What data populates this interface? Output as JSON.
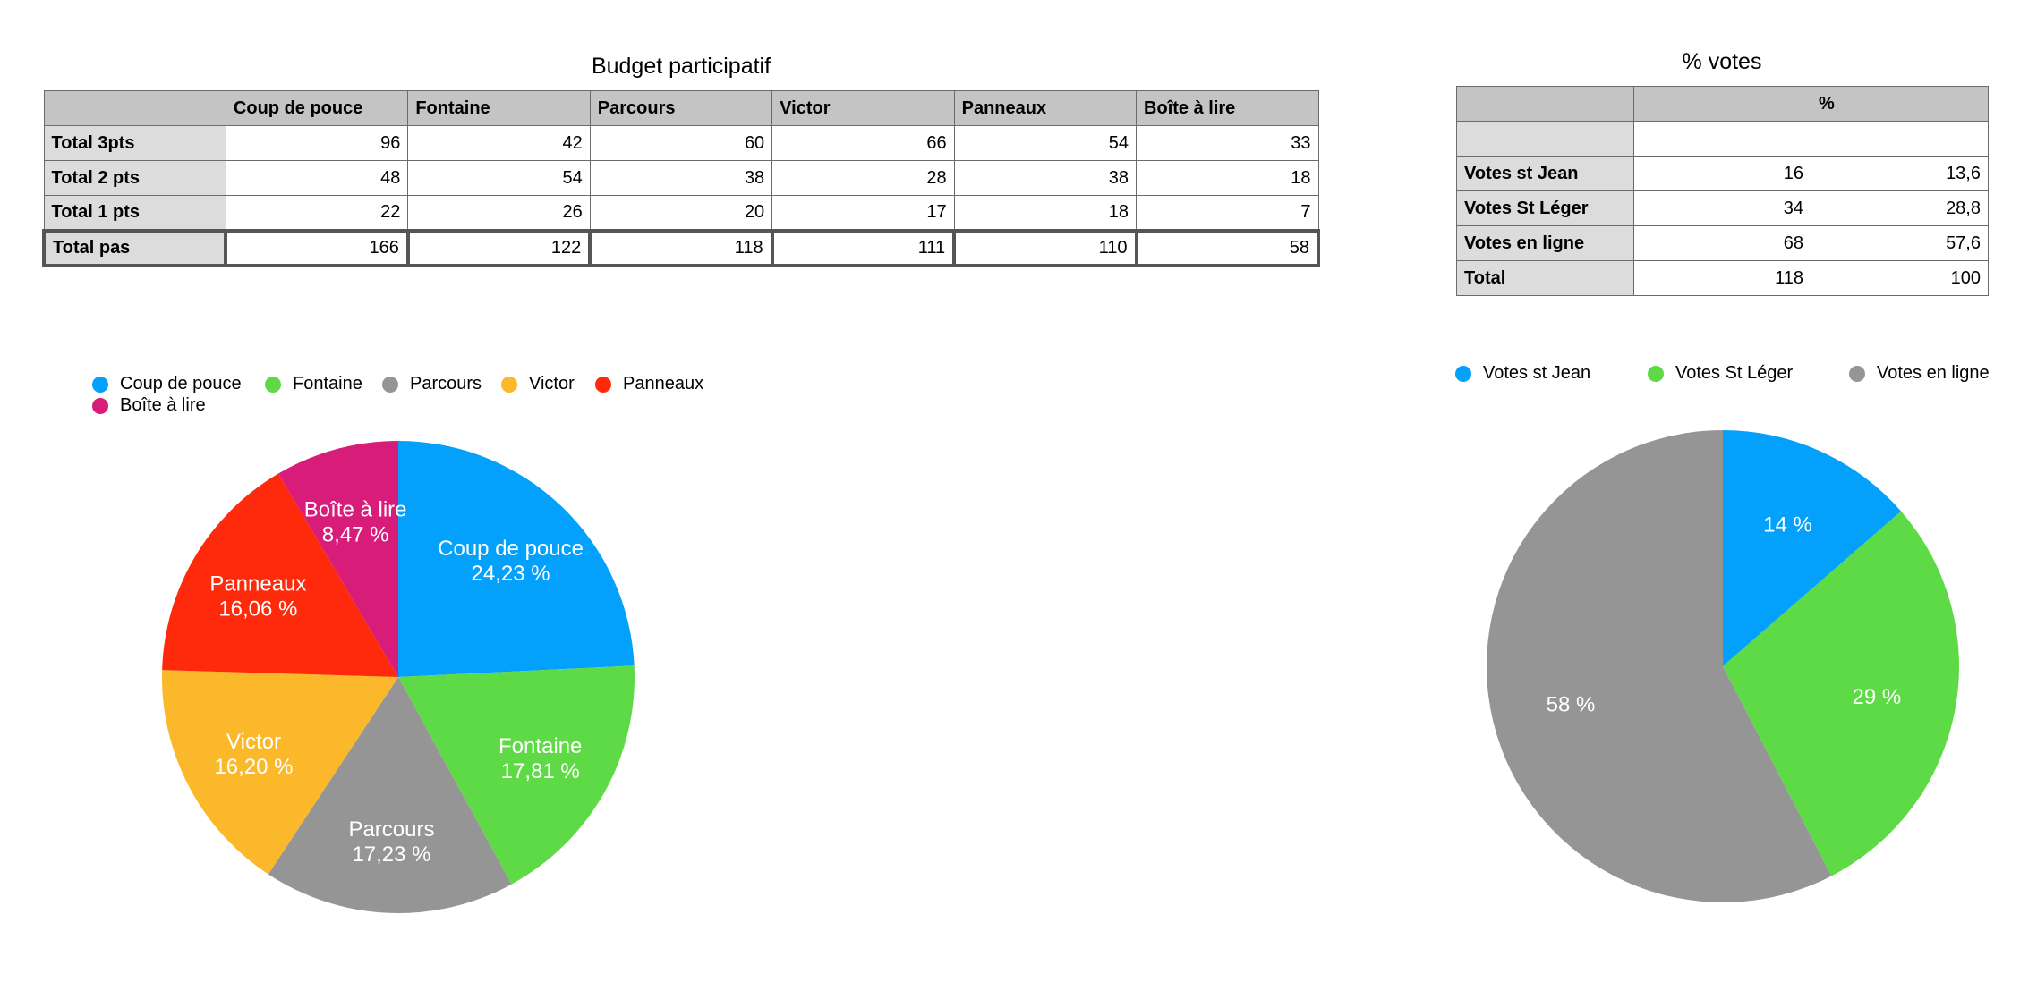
{
  "budget": {
    "title": "Budget participatif",
    "columns": [
      "",
      "Coup de pouce",
      "Fontaine",
      "Parcours",
      "Victor",
      "Panneaux",
      "Boîte à lire"
    ],
    "rows": [
      {
        "label": "Total 3pts",
        "values": [
          "96",
          "42",
          "60",
          "66",
          "54",
          "33"
        ]
      },
      {
        "label": "Total 2 pts",
        "values": [
          "48",
          "54",
          "38",
          "28",
          "38",
          "18"
        ]
      },
      {
        "label": "Total 1 pts",
        "values": [
          "22",
          "26",
          "20",
          "17",
          "18",
          "7"
        ]
      },
      {
        "label": "Total pas",
        "values": [
          "166",
          "122",
          "118",
          "111",
          "110",
          "58"
        ]
      }
    ]
  },
  "votes": {
    "title": "% votes",
    "columns": [
      "",
      "",
      "%"
    ],
    "rows": [
      {
        "label": "",
        "values": [
          "",
          ""
        ]
      },
      {
        "label": "Votes st Jean",
        "values": [
          "16",
          "13,6"
        ]
      },
      {
        "label": "Votes St Léger",
        "values": [
          "34",
          "28,8"
        ]
      },
      {
        "label": "Votes en ligne",
        "values": [
          "68",
          "57,6"
        ]
      },
      {
        "label": "Total",
        "values": [
          "118",
          "100"
        ]
      }
    ]
  },
  "chart_data": [
    {
      "type": "pie",
      "categories": [
        "Coup de pouce",
        "Fontaine",
        "Parcours",
        "Victor",
        "Panneaux",
        "Boîte à lire"
      ],
      "values": [
        166,
        122,
        118,
        111,
        110,
        58
      ],
      "labels": [
        "24,23 %",
        "17,81 %",
        "17,23 %",
        "16,20 %",
        "16,06 %",
        "8,47 %"
      ],
      "colors": [
        "#03a1fb",
        "#5fda47",
        "#959595",
        "#fbb82a",
        "#fe2a0b",
        "#d71c79"
      ],
      "show_category_in_label": true,
      "legend": "top-left"
    },
    {
      "type": "pie",
      "categories": [
        "Votes st Jean",
        "Votes St Léger",
        "Votes en ligne"
      ],
      "values": [
        13.6,
        28.8,
        57.6
      ],
      "labels": [
        "14 %",
        "29 %",
        "58 %"
      ],
      "colors": [
        "#03a1fb",
        "#5fda47",
        "#959595"
      ],
      "show_category_in_label": false,
      "legend": "top"
    }
  ]
}
